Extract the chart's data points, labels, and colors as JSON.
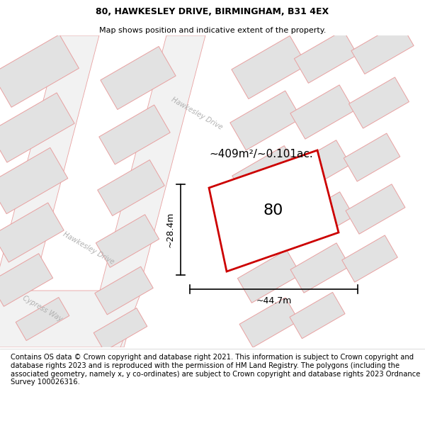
{
  "title": "80, HAWKESLEY DRIVE, BIRMINGHAM, B31 4EX",
  "subtitle": "Map shows position and indicative extent of the property.",
  "footer": "Contains OS data © Crown copyright and database right 2021. This information is subject to Crown copyright and database rights 2023 and is reproduced with the permission of HM Land Registry. The polygons (including the associated geometry, namely x, y co-ordinates) are subject to Crown copyright and database rights 2023 Ordnance Survey 100026316.",
  "map_bg": "#f8f8f8",
  "bld_fill": "#e2e2e2",
  "bld_edge": "#e8a0a0",
  "road_edge": "#e8a0a0",
  "road_fill": "#f0f0f0",
  "prop_fill": "#ffffff",
  "prop_edge": "#cc0000",
  "area_text": "~409m²/~0.101ac.",
  "label_80": "80",
  "dim_w": "~44.7m",
  "dim_h": "~28.4m",
  "road1_label": "Hawkesley Drive",
  "road2_label": "Hawkesley Drive",
  "road3_label": "Cypress Way",
  "title_fontsize": 9,
  "subtitle_fontsize": 8,
  "footer_fontsize": 7.2
}
